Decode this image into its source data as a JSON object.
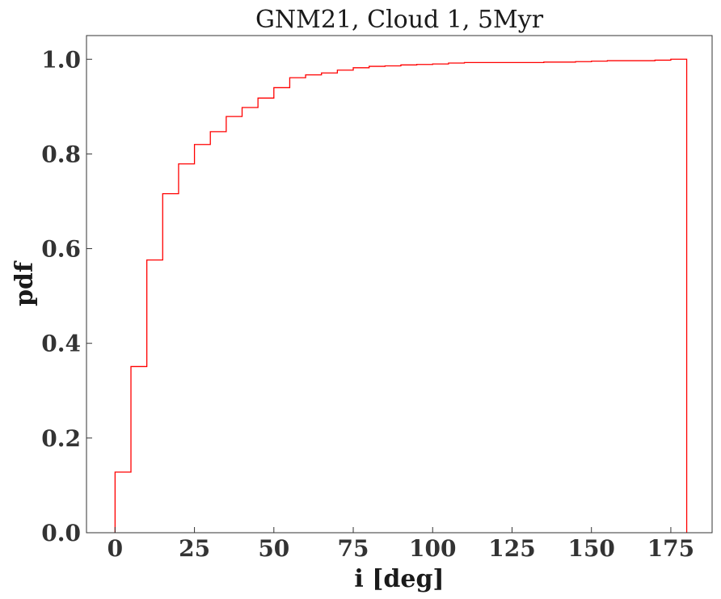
{
  "chart_data": {
    "type": "line",
    "subtype": "cumulative-step-histogram",
    "title": "GNM21, Cloud 1, 5Myr",
    "xlabel": "i [deg]",
    "ylabel": "pdf",
    "xlim": [
      -9,
      188
    ],
    "ylim": [
      0,
      1.05
    ],
    "x_ticks": [
      0,
      25,
      50,
      75,
      100,
      125,
      150,
      175
    ],
    "x_tick_labels": [
      "0",
      "25",
      "50",
      "75",
      "100",
      "125",
      "150",
      "175"
    ],
    "y_ticks": [
      0.0,
      0.2,
      0.4,
      0.6,
      0.8,
      1.0
    ],
    "y_tick_labels": [
      "0.0",
      "0.2",
      "0.4",
      "0.6",
      "0.8",
      "1.0"
    ],
    "grid": false,
    "series": [
      {
        "color": "#ff0000",
        "bin_edges": [
          0,
          5,
          10,
          15,
          20,
          25,
          30,
          35,
          40,
          45,
          50,
          55,
          60,
          65,
          70,
          75,
          80,
          85,
          90,
          95,
          100,
          105,
          110,
          115,
          120,
          125,
          130,
          135,
          140,
          145,
          150,
          155,
          160,
          165,
          170,
          175,
          180
        ],
        "values": [
          0.128,
          0.351,
          0.576,
          0.716,
          0.779,
          0.82,
          0.847,
          0.879,
          0.898,
          0.918,
          0.94,
          0.961,
          0.967,
          0.971,
          0.977,
          0.982,
          0.985,
          0.986,
          0.988,
          0.989,
          0.99,
          0.992,
          0.993,
          0.993,
          0.993,
          0.993,
          0.993,
          0.994,
          0.994,
          0.995,
          0.996,
          0.997,
          0.997,
          0.997,
          0.998,
          1.0
        ]
      }
    ]
  }
}
